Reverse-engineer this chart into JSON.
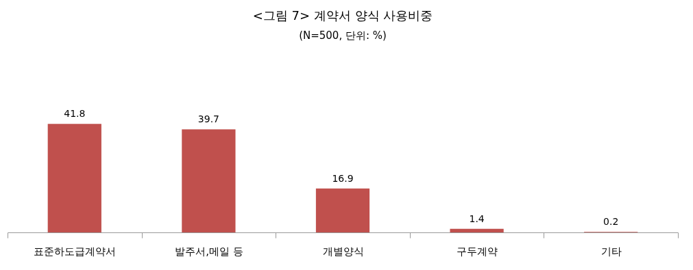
{
  "chart_data": {
    "type": "bar",
    "title": "<그림 7> 계약서 양식 사용비중",
    "subtitle": "(N=500, 단위: %)",
    "categories": [
      "표준하도급계약서",
      "발주서,메일 등",
      "개별양식",
      "구두계약",
      "기타"
    ],
    "series": [
      {
        "color": "#c0504d",
        "values": [
          41.8,
          39.7,
          16.9,
          1.4,
          0.2
        ]
      }
    ],
    "data_labels": true
  }
}
